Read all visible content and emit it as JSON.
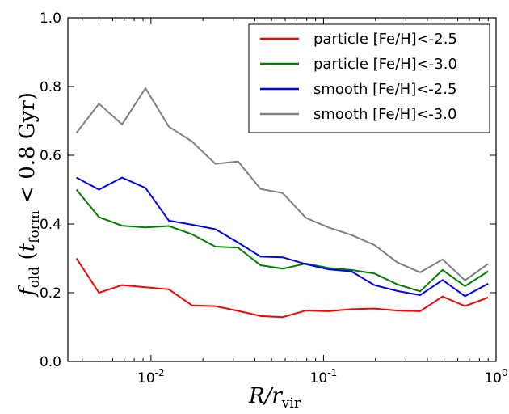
{
  "chart_data": {
    "type": "line",
    "title": "",
    "xlabel": "R/r_vir",
    "ylabel": "f_old (t_form < 0.8 Gyr)",
    "xscale": "log",
    "xlim": [
      0.0033,
      1.0
    ],
    "ylim": [
      0.0,
      1.0
    ],
    "grid": false,
    "legend_placement": "top-right",
    "x_tick_labels": [
      "10^-2",
      "10^-1",
      "10^0"
    ],
    "y_tick_labels": [
      "0.0",
      "0.2",
      "0.4",
      "0.6",
      "0.8",
      "1.0"
    ],
    "x": [
      0.0037,
      0.005,
      0.0068,
      0.0093,
      0.0127,
      0.0173,
      0.0236,
      0.032,
      0.0432,
      0.058,
      0.079,
      0.107,
      0.145,
      0.197,
      0.268,
      0.363,
      0.49,
      0.66,
      0.9
    ],
    "series": [
      {
        "name": "particle [Fe/H]<-2.5",
        "color": "#ff0000",
        "values": [
          0.3,
          0.2,
          0.222,
          0.216,
          0.21,
          0.163,
          0.161,
          0.147,
          0.132,
          0.129,
          0.148,
          0.146,
          0.152,
          0.154,
          0.148,
          0.146,
          0.189,
          0.161,
          0.186
        ]
      },
      {
        "name": "particle [Fe/H]<-3.0",
        "color": "#008000",
        "values": [
          0.5,
          0.42,
          0.395,
          0.39,
          0.394,
          0.37,
          0.334,
          0.331,
          0.28,
          0.27,
          0.285,
          0.272,
          0.266,
          0.256,
          0.224,
          0.204,
          0.266,
          0.219,
          0.262
        ]
      },
      {
        "name": "smooth [Fe/H]<-2.5",
        "color": "#0000ff",
        "values": [
          0.535,
          0.5,
          0.535,
          0.505,
          0.41,
          0.398,
          0.385,
          0.346,
          0.305,
          0.303,
          0.283,
          0.268,
          0.262,
          0.222,
          0.205,
          0.193,
          0.237,
          0.19,
          0.226
        ]
      },
      {
        "name": "smooth [Fe/H]<-3.0",
        "color": "#808080",
        "values": [
          0.665,
          0.75,
          0.69,
          0.795,
          0.683,
          0.64,
          0.575,
          0.582,
          0.502,
          0.49,
          0.418,
          0.39,
          0.368,
          0.339,
          0.288,
          0.259,
          0.297,
          0.236,
          0.284
        ]
      }
    ]
  }
}
